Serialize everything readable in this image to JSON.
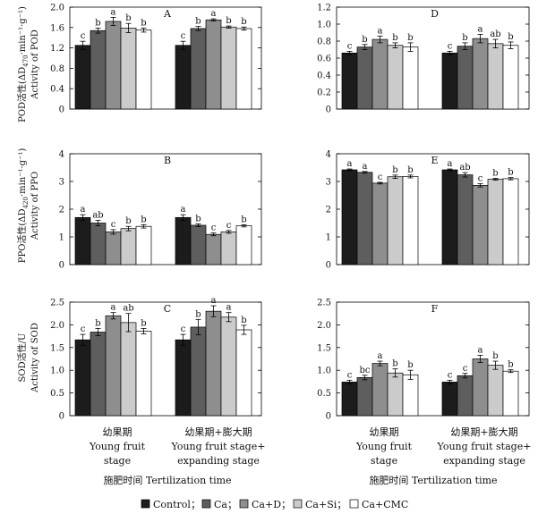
{
  "colors": {
    "Control": "#1c1c1c",
    "Ca": "#5e5e5e",
    "Ca+D": "#8e8e8e",
    "Ca+Si": "#cbcbcb",
    "Ca+CMC": "#ffffff"
  },
  "y_labels": {
    "pod_cn": "POD活性(ΔD",
    "pod_sub": "470",
    "pod_unit": "·min⁻¹·g⁻¹)",
    "pod_en": "Activity of POD",
    "ppo_cn": "PPO活性(ΔD",
    "ppo_sub": "420",
    "ppo_unit": "·min⁻¹·g⁻¹)",
    "ppo_en": "Activity of PPO",
    "sod_cn": "SOD活性/U",
    "sod_en": "Activity of SOD"
  },
  "x_axis": {
    "stage1_cn": "幼果期",
    "stage1_en_l1": "Young fruit",
    "stage1_en_l2": "stage",
    "stage2_cn": "幼果期+膨大期",
    "stage2_en_l1": "Young fruit stage+",
    "stage2_en_l2": "expanding stage",
    "title": "施肥时间 Tertilization time"
  },
  "legend": [
    "Control；",
    "Ca；",
    "Ca+D；",
    "Ca+Si；",
    "Ca+CMC"
  ],
  "chart_data": [
    {
      "panel": "A",
      "type": "bar",
      "ylim": [
        0,
        2.0
      ],
      "yticks": [
        "0",
        "0.4",
        "0.8",
        "1.2",
        "1.6",
        "2.0"
      ],
      "categories": [
        "幼果期",
        "幼果期+膨大期"
      ],
      "series": [
        {
          "name": "Control",
          "values": [
            1.25,
            1.25
          ],
          "errors": [
            0.08,
            0.08
          ],
          "letters": [
            "c",
            "c"
          ]
        },
        {
          "name": "Ca",
          "values": [
            1.54,
            1.58
          ],
          "errors": [
            0.05,
            0.04
          ],
          "letters": [
            "b",
            "b"
          ]
        },
        {
          "name": "Ca+D",
          "values": [
            1.72,
            1.75
          ],
          "errors": [
            0.08,
            0.02
          ],
          "letters": [
            "a",
            "a"
          ]
        },
        {
          "name": "Ca+Si",
          "values": [
            1.59,
            1.61
          ],
          "errors": [
            0.09,
            0.02
          ],
          "letters": [
            "b",
            "b"
          ]
        },
        {
          "name": "Ca+CMC",
          "values": [
            1.55,
            1.58
          ],
          "errors": [
            0.04,
            0.03
          ],
          "letters": [
            "b",
            "b"
          ]
        }
      ]
    },
    {
      "panel": "D",
      "type": "bar",
      "ylim": [
        0,
        1.2
      ],
      "yticks": [
        "0",
        "0.2",
        "0.4",
        "0.6",
        "0.8",
        "1.0",
        "1.2"
      ],
      "categories": [
        "幼果期",
        "幼果期+膨大期"
      ],
      "series": [
        {
          "name": "Control",
          "values": [
            0.66,
            0.66
          ],
          "errors": [
            0.02,
            0.02
          ],
          "letters": [
            "c",
            "c"
          ]
        },
        {
          "name": "Ca",
          "values": [
            0.73,
            0.74
          ],
          "errors": [
            0.03,
            0.04
          ],
          "letters": [
            "b",
            "b"
          ]
        },
        {
          "name": "Ca+D",
          "values": [
            0.82,
            0.83
          ],
          "errors": [
            0.04,
            0.05
          ],
          "letters": [
            "a",
            "a"
          ]
        },
        {
          "name": "Ca+Si",
          "values": [
            0.75,
            0.77
          ],
          "errors": [
            0.03,
            0.05
          ],
          "letters": [
            "b",
            "ab"
          ]
        },
        {
          "name": "Ca+CMC",
          "values": [
            0.73,
            0.75
          ],
          "errors": [
            0.05,
            0.04
          ],
          "letters": [
            "b",
            "b"
          ]
        }
      ]
    },
    {
      "panel": "B",
      "type": "bar",
      "ylim": [
        0,
        4
      ],
      "yticks": [
        "0",
        "1",
        "2",
        "3",
        "4"
      ],
      "categories": [
        "幼果期",
        "幼果期+膨大期"
      ],
      "series": [
        {
          "name": "Control",
          "values": [
            1.7,
            1.7
          ],
          "errors": [
            0.1,
            0.1
          ],
          "letters": [
            "a",
            "a"
          ]
        },
        {
          "name": "Ca",
          "values": [
            1.5,
            1.42
          ],
          "errors": [
            0.1,
            0.05
          ],
          "letters": [
            "ab",
            "b"
          ]
        },
        {
          "name": "Ca+D",
          "values": [
            1.18,
            1.09
          ],
          "errors": [
            0.08,
            0.05
          ],
          "letters": [
            "c",
            "c"
          ]
        },
        {
          "name": "Ca+Si",
          "values": [
            1.3,
            1.18
          ],
          "errors": [
            0.08,
            0.05
          ],
          "letters": [
            "b",
            "c"
          ]
        },
        {
          "name": "Ca+CMC",
          "values": [
            1.38,
            1.4
          ],
          "errors": [
            0.06,
            0.04
          ],
          "letters": [
            "b",
            "b"
          ]
        }
      ]
    },
    {
      "panel": "E",
      "type": "bar",
      "ylim": [
        0,
        4
      ],
      "yticks": [
        "0",
        "1",
        "2",
        "3",
        "4"
      ],
      "categories": [
        "幼果期",
        "幼果期+膨大期"
      ],
      "series": [
        {
          "name": "Control",
          "values": [
            3.42,
            3.42
          ],
          "errors": [
            0.03,
            0.03
          ],
          "letters": [
            "a",
            "a"
          ]
        },
        {
          "name": "Ca",
          "values": [
            3.33,
            3.24
          ],
          "errors": [
            0.03,
            0.08
          ],
          "letters": [
            "a",
            "ab"
          ]
        },
        {
          "name": "Ca+D",
          "values": [
            2.94,
            2.86
          ],
          "errors": [
            0.03,
            0.06
          ],
          "letters": [
            "c",
            "c"
          ]
        },
        {
          "name": "Ca+Si",
          "values": [
            3.17,
            3.08
          ],
          "errors": [
            0.06,
            0.03
          ],
          "letters": [
            "b",
            "b"
          ]
        },
        {
          "name": "Ca+CMC",
          "values": [
            3.18,
            3.1
          ],
          "errors": [
            0.05,
            0.04
          ],
          "letters": [
            "b",
            "b"
          ]
        }
      ]
    },
    {
      "panel": "C",
      "type": "bar",
      "ylim": [
        0,
        2.5
      ],
      "yticks": [
        "0",
        "0.5",
        "1.0",
        "1.5",
        "2.0",
        "2.5"
      ],
      "categories": [
        "幼果期",
        "幼果期+膨大期"
      ],
      "series": [
        {
          "name": "Control",
          "values": [
            1.67,
            1.67
          ],
          "errors": [
            0.12,
            0.12
          ],
          "letters": [
            "c",
            "c"
          ]
        },
        {
          "name": "Ca",
          "values": [
            1.84,
            1.95
          ],
          "errors": [
            0.08,
            0.17
          ],
          "letters": [
            "b",
            "b"
          ]
        },
        {
          "name": "Ca+D",
          "values": [
            2.2,
            2.3
          ],
          "errors": [
            0.07,
            0.12
          ],
          "letters": [
            "a",
            "a"
          ]
        },
        {
          "name": "Ca+Si",
          "values": [
            2.05,
            2.17
          ],
          "errors": [
            0.2,
            0.1
          ],
          "letters": [
            "ab",
            "a"
          ]
        },
        {
          "name": "Ca+CMC",
          "values": [
            1.86,
            1.89
          ],
          "errors": [
            0.06,
            0.1
          ],
          "letters": [
            "b",
            "b"
          ]
        }
      ]
    },
    {
      "panel": "F",
      "type": "bar",
      "ylim": [
        0,
        2.5
      ],
      "yticks": [
        "0",
        "0.5",
        "1.0",
        "1.5",
        "2.0",
        "2.5"
      ],
      "categories": [
        "幼果期",
        "幼果期+膨大期"
      ],
      "series": [
        {
          "name": "Control",
          "values": [
            0.74,
            0.74
          ],
          "errors": [
            0.04,
            0.04
          ],
          "letters": [
            "c",
            "c"
          ]
        },
        {
          "name": "Ca",
          "values": [
            0.84,
            0.88
          ],
          "errors": [
            0.05,
            0.05
          ],
          "letters": [
            "bc",
            "c"
          ]
        },
        {
          "name": "Ca+D",
          "values": [
            1.15,
            1.25
          ],
          "errors": [
            0.05,
            0.08
          ],
          "letters": [
            "a",
            "a"
          ]
        },
        {
          "name": "Ca+Si",
          "values": [
            0.94,
            1.11
          ],
          "errors": [
            0.09,
            0.09
          ],
          "letters": [
            "b",
            "b"
          ]
        },
        {
          "name": "Ca+CMC",
          "values": [
            0.9,
            0.98
          ],
          "errors": [
            0.1,
            0.03
          ],
          "letters": [
            "b",
            "b"
          ]
        }
      ]
    }
  ]
}
